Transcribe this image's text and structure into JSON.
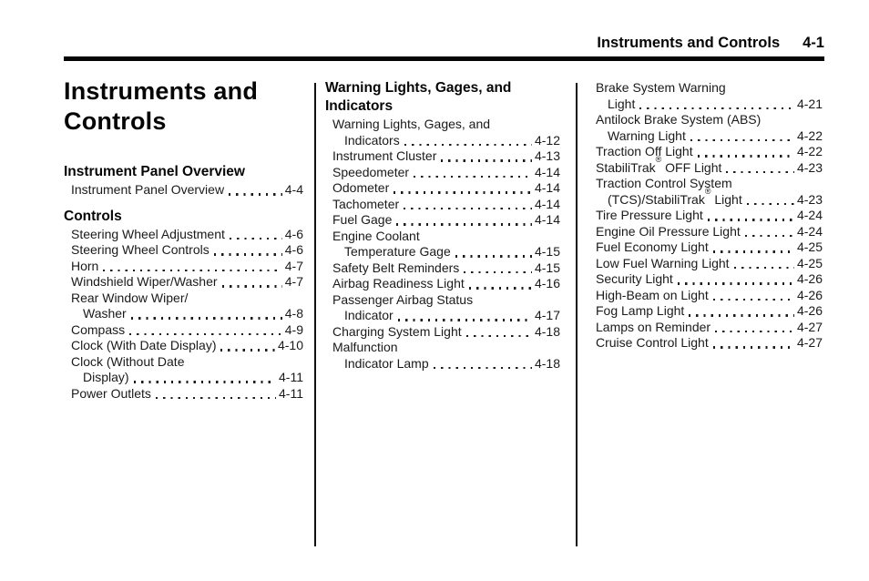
{
  "header": {
    "title": "Instruments and Controls",
    "page_number": "4-1"
  },
  "chapter_title": "Instruments and Controls",
  "columns": [
    {
      "sections": [
        {
          "heading": "Instrument Panel Overview",
          "entries": [
            {
              "label": "Instrument Panel Overview",
              "page": "4-4"
            }
          ]
        },
        {
          "heading": "Controls",
          "entries": [
            {
              "label": "Steering Wheel Adjustment",
              "page": "4-6"
            },
            {
              "label": "Steering Wheel Controls",
              "page": "4-6"
            },
            {
              "label": "Horn",
              "page": "4-7"
            },
            {
              "label": "Windshield Wiper/Washer",
              "page": "4-7"
            },
            {
              "lines": [
                "Rear Window Wiper/"
              ],
              "label": "Washer",
              "page": "4-8"
            },
            {
              "label": "Compass",
              "page": "4-9"
            },
            {
              "label": "Clock (With Date Display)",
              "page": "4-10"
            },
            {
              "lines": [
                "Clock (Without Date"
              ],
              "label": "Display)",
              "page": "4-11"
            },
            {
              "label": "Power Outlets",
              "page": "4-11"
            }
          ]
        }
      ]
    },
    {
      "sections": [
        {
          "heading": "Warning Lights, Gages, and Indicators",
          "entries": [
            {
              "lines": [
                "Warning Lights, Gages, and"
              ],
              "label": "Indicators",
              "page": "4-12"
            },
            {
              "label": "Instrument Cluster",
              "page": "4-13"
            },
            {
              "label": "Speedometer",
              "page": "4-14"
            },
            {
              "label": "Odometer",
              "page": "4-14"
            },
            {
              "label": "Tachometer",
              "page": "4-14"
            },
            {
              "label": "Fuel Gage",
              "page": "4-14"
            },
            {
              "lines": [
                "Engine Coolant"
              ],
              "label": "Temperature Gage",
              "page": "4-15"
            },
            {
              "label": "Safety Belt Reminders",
              "page": "4-15"
            },
            {
              "label": "Airbag Readiness Light",
              "page": "4-16"
            },
            {
              "lines": [
                "Passenger Airbag Status"
              ],
              "label": "Indicator",
              "page": "4-17"
            },
            {
              "label": "Charging System Light",
              "page": "4-18"
            },
            {
              "lines": [
                "Malfunction"
              ],
              "label": "Indicator Lamp",
              "page": "4-18"
            }
          ]
        }
      ]
    },
    {
      "sections": [
        {
          "heading": null,
          "entries": [
            {
              "lines": [
                "Brake System Warning"
              ],
              "label": "Light",
              "page": "4-21"
            },
            {
              "lines": [
                "Antilock Brake System (ABS)"
              ],
              "label": "Warning Light",
              "page": "4-22"
            },
            {
              "label": "Traction Off Light",
              "page": "4-22"
            },
            {
              "label": "StabiliTrak® OFF Light",
              "page": "4-23"
            },
            {
              "lines": [
                "Traction Control System"
              ],
              "label": "(TCS)/StabiliTrak® Light",
              "page": "4-23"
            },
            {
              "label": "Tire Pressure Light",
              "page": "4-24"
            },
            {
              "label": "Engine Oil Pressure Light",
              "page": "4-24"
            },
            {
              "label": "Fuel Economy Light",
              "page": "4-25"
            },
            {
              "label": "Low Fuel Warning Light",
              "page": "4-25"
            },
            {
              "label": "Security Light",
              "page": "4-26"
            },
            {
              "label": "High-Beam on Light",
              "page": "4-26"
            },
            {
              "label": "Fog Lamp Light",
              "page": "4-26"
            },
            {
              "label": "Lamps on Reminder",
              "page": "4-27"
            },
            {
              "label": "Cruise Control Light",
              "page": "4-27"
            }
          ]
        }
      ]
    }
  ]
}
